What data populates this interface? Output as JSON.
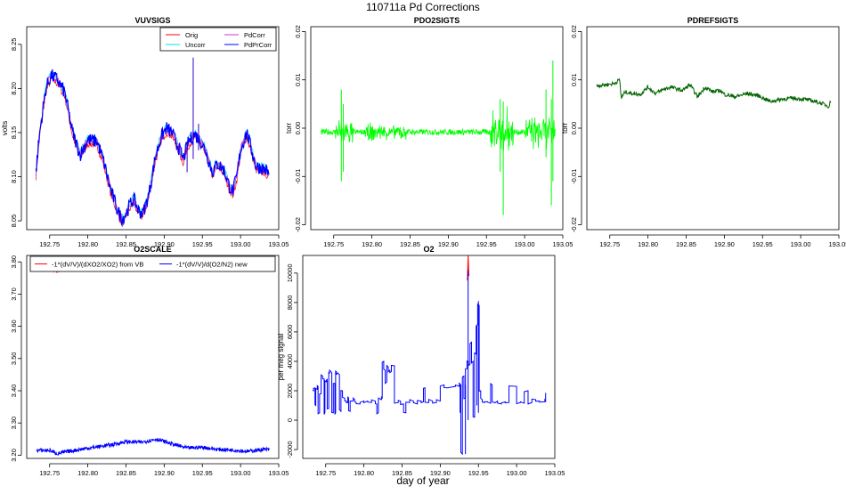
{
  "figure": {
    "title": "110711a   Pd Corrections",
    "xlabel": "day of year"
  },
  "colors": {
    "orig": "#ff0000",
    "uncorr": "#00e5ee",
    "pdcorr": "#cc33cc",
    "pdprcorr": "#0000ff",
    "pdo2": "#00ff00",
    "pdref": "#006400",
    "o2scale_vb": "#ff0000",
    "o2scale_new": "#0000ff"
  },
  "chart_data": [
    {
      "id": "vuvsigs",
      "type": "line",
      "title": "VUVSIGS",
      "ylabel": "volts",
      "xlim": [
        192.72,
        193.05
      ],
      "ylim": [
        8.04,
        8.27
      ],
      "xticks": [
        192.75,
        192.8,
        192.85,
        192.9,
        192.95,
        193.0,
        193.05
      ],
      "yticks": [
        8.05,
        8.1,
        8.15,
        8.2,
        8.25
      ],
      "legend": {
        "placement": "top-right",
        "entries": [
          "Orig",
          "Uncorr",
          "PdCorr",
          "PdPrCorr"
        ]
      },
      "series": [
        {
          "name": "Orig",
          "color": "#ff0000",
          "offset": -0.004
        },
        {
          "name": "Uncorr",
          "color": "#00e5ee",
          "offset": 0.002
        },
        {
          "name": "PdCorr",
          "color": "#cc33cc",
          "offset": 0.0
        },
        {
          "name": "PdPrCorr",
          "color": "#0000ff",
          "offset": 0.0
        }
      ],
      "band": 0.008,
      "x": [
        192.732,
        192.737,
        192.745,
        192.752,
        192.76,
        192.77,
        192.78,
        192.79,
        192.8,
        192.812,
        192.82,
        192.83,
        192.84,
        192.845,
        192.85,
        192.855,
        192.86,
        192.866,
        192.872,
        192.88,
        192.888,
        192.896,
        192.903,
        192.91,
        192.918,
        192.925,
        192.932,
        192.94,
        192.948,
        192.955,
        192.963,
        192.97,
        192.978,
        192.985,
        192.99,
        192.995,
        193.0,
        193.008,
        193.014,
        193.02,
        193.027,
        193.033,
        193.038
      ],
      "y": [
        8.105,
        8.15,
        8.2,
        8.215,
        8.21,
        8.195,
        8.15,
        8.125,
        8.142,
        8.14,
        8.12,
        8.085,
        8.06,
        8.052,
        8.058,
        8.068,
        8.075,
        8.062,
        8.058,
        8.08,
        8.12,
        8.145,
        8.155,
        8.15,
        8.135,
        8.12,
        8.14,
        8.148,
        8.14,
        8.128,
        8.105,
        8.115,
        8.108,
        8.09,
        8.083,
        8.1,
        8.13,
        8.15,
        8.132,
        8.112,
        8.11,
        8.108,
        8.102
      ],
      "spikes": [
        {
          "x": 192.938,
          "ymin": 8.12,
          "ymax": 8.235
        },
        {
          "x": 192.93,
          "ymin": 8.105,
          "ymax": 8.14
        },
        {
          "x": 192.945,
          "ymin": 8.13,
          "ymax": 8.16
        }
      ]
    },
    {
      "id": "pdo2sigts",
      "type": "line",
      "title": "PDO2SIGTS",
      "ylabel": "torr",
      "xlim": [
        192.72,
        193.05
      ],
      "ylim": [
        -0.021,
        0.021
      ],
      "xticks": [
        192.75,
        192.8,
        192.85,
        192.9,
        192.95,
        193.0,
        193.05
      ],
      "yticks": [
        -0.02,
        -0.01,
        0.0,
        0.01,
        0.02
      ],
      "series": [
        {
          "name": "",
          "color": "#00ff00"
        }
      ],
      "baseline": -0.0008,
      "noise": 0.0006,
      "bursts": [
        {
          "x0": 192.752,
          "x1": 192.775,
          "amp": 0.0025
        },
        {
          "x0": 192.79,
          "x1": 192.845,
          "amp": 0.0016
        },
        {
          "x0": 192.955,
          "x1": 192.985,
          "amp": 0.0045
        },
        {
          "x0": 193.0,
          "x1": 193.04,
          "amp": 0.003
        }
      ],
      "spikes": [
        {
          "x": 192.76,
          "ymin": -0.011,
          "ymax": 0.008
        },
        {
          "x": 192.7625,
          "ymin": -0.009,
          "ymax": 0.005
        },
        {
          "x": 192.972,
          "ymin": -0.018,
          "ymax": 0.0055
        },
        {
          "x": 192.968,
          "ymin": -0.009,
          "ymax": 0.006
        },
        {
          "x": 193.035,
          "ymin": -0.016,
          "ymax": 0.006
        },
        {
          "x": 193.037,
          "ymin": -0.011,
          "ymax": 0.014
        },
        {
          "x": 193.028,
          "ymin": -0.006,
          "ymax": 0.008
        }
      ]
    },
    {
      "id": "pdrefsigts",
      "type": "line",
      "title": "PDREFSIGTS",
      "ylabel": "torr",
      "xlim": [
        192.72,
        193.05
      ],
      "ylim": [
        -0.021,
        0.021
      ],
      "xticks": [
        192.75,
        192.8,
        192.85,
        192.9,
        192.95,
        193.0,
        193.05
      ],
      "yticks": [
        -0.02,
        -0.01,
        0.0,
        0.01,
        0.02
      ],
      "series": [
        {
          "name": "",
          "color": "#006400"
        }
      ],
      "noise": 0.0004,
      "x": [
        192.733,
        192.745,
        192.755,
        192.763,
        192.765,
        192.77,
        192.78,
        192.79,
        192.8,
        192.81,
        192.82,
        192.83,
        192.845,
        192.855,
        192.865,
        192.875,
        192.885,
        192.895,
        192.9,
        192.915,
        192.93,
        192.945,
        192.96,
        192.975,
        192.99,
        193.005,
        193.02,
        193.03,
        193.037,
        193.04
      ],
      "y": [
        0.0088,
        0.009,
        0.0092,
        0.01,
        0.0062,
        0.0075,
        0.0072,
        0.007,
        0.0085,
        0.0072,
        0.008,
        0.0085,
        0.0078,
        0.009,
        0.0065,
        0.0085,
        0.0075,
        0.0078,
        0.007,
        0.0065,
        0.0072,
        0.0067,
        0.0055,
        0.006,
        0.0062,
        0.006,
        0.0055,
        0.005,
        0.0045,
        0.006
      ]
    },
    {
      "id": "o2scale",
      "type": "line",
      "title": "O2SCALE",
      "ylabel": "",
      "xlim": [
        192.72,
        193.05
      ],
      "ylim": [
        3.19,
        3.82
      ],
      "xticks": [
        192.75,
        192.8,
        192.85,
        192.9,
        192.95,
        193.0,
        193.05
      ],
      "yticks": [
        3.2,
        3.3,
        3.4,
        3.5,
        3.6,
        3.7,
        3.8
      ],
      "legend": {
        "placement": "top",
        "entries": [
          "-1*(dV/V)/(dXO2/XO2) from VB",
          "-1*(dV/V)/d(O2/N2) new"
        ]
      },
      "noise": 0.006,
      "series": [
        {
          "name": "-1*(dV/V)/(dXO2/XO2) from VB",
          "color": "#ff0000",
          "x": [
            192.733,
            192.75,
            192.76,
            192.775,
            192.79,
            192.81,
            192.83,
            192.85,
            192.87,
            192.89,
            192.91,
            192.93,
            192.95,
            192.97,
            192.99,
            193.01,
            193.03,
            193.038
          ],
          "y": [
            3.785,
            3.785,
            3.77,
            3.785,
            3.792,
            3.798,
            3.8,
            3.8,
            3.805,
            3.798,
            3.79,
            3.78,
            3.79,
            3.8,
            3.785,
            3.778,
            3.785,
            3.783
          ]
        },
        {
          "name": "-1*(dV/V)/d(O2/N2) new",
          "color": "#0000ff",
          "x": [
            192.733,
            192.75,
            192.76,
            192.775,
            192.79,
            192.81,
            192.83,
            192.85,
            192.87,
            192.89,
            192.91,
            192.93,
            192.95,
            192.97,
            192.99,
            193.01,
            193.03,
            193.038
          ],
          "y": [
            3.215,
            3.215,
            3.205,
            3.212,
            3.218,
            3.225,
            3.232,
            3.242,
            3.24,
            3.25,
            3.235,
            3.222,
            3.225,
            3.218,
            3.216,
            3.212,
            3.218,
            3.217
          ]
        }
      ]
    },
    {
      "id": "o2",
      "type": "line",
      "title": "O2",
      "ylabel": "per meg signal",
      "xlim": [
        192.72,
        193.05
      ],
      "ylim": [
        -2600,
        11200
      ],
      "xticks": [
        192.75,
        192.8,
        192.85,
        192.9,
        192.95,
        193.0,
        193.05
      ],
      "yticks": [
        -2000,
        0,
        2000,
        4000,
        6000,
        8000,
        10000
      ],
      "noise": 120,
      "series": [
        {
          "name": "",
          "color": "#ff0000",
          "x": [
            192.9355,
            192.9365,
            192.9375
          ],
          "y": [
            9500,
            11200,
            9800
          ]
        },
        {
          "name": "",
          "color": "#0000ff",
          "x": [
            192.733,
            192.734,
            192.736,
            192.737,
            192.739,
            192.74,
            192.742,
            192.744,
            192.746,
            192.748,
            192.749,
            192.751,
            192.752,
            192.754,
            192.755,
            192.757,
            192.758,
            192.76,
            192.762,
            192.763,
            192.764,
            192.766,
            192.768,
            192.77,
            192.772,
            192.775,
            192.777,
            192.779,
            192.78,
            192.782,
            192.784,
            192.786,
            192.788,
            192.79,
            192.795,
            192.8,
            192.805,
            192.81,
            192.815,
            192.817,
            192.819,
            192.823,
            192.824,
            192.826,
            192.828,
            192.83,
            192.832,
            192.834,
            192.836,
            192.84,
            192.845,
            192.848,
            192.852,
            192.855,
            192.86,
            192.865,
            192.87,
            192.875,
            192.878,
            192.88,
            192.885,
            192.89,
            192.895,
            192.9,
            192.905,
            192.91,
            192.92,
            192.925,
            192.927,
            192.929,
            192.931,
            192.933,
            192.935,
            192.937,
            192.939,
            192.941,
            192.943,
            192.945,
            192.947,
            192.949,
            192.951,
            192.953,
            192.955,
            192.958,
            192.962,
            192.966,
            192.968,
            192.972,
            192.975,
            192.98,
            192.985,
            192.99,
            193.0,
            193.005,
            193.01,
            193.015,
            193.02,
            193.025,
            193.03,
            193.037,
            193.038
          ],
          "y": [
            2000,
            2200,
            1000,
            2100,
            2300,
            500,
            1800,
            3000,
            2800,
            500,
            2600,
            2800,
            800,
            3200,
            3300,
            3200,
            500,
            2500,
            500,
            3300,
            3200,
            3100,
            600,
            2000,
            1500,
            1300,
            1200,
            1500,
            600,
            1300,
            1300,
            1400,
            1200,
            1100,
            1300,
            1300,
            1200,
            1300,
            1100,
            500,
            1400,
            1500,
            4000,
            3400,
            2600,
            3600,
            3400,
            3300,
            3700,
            1200,
            1300,
            1100,
            500,
            1200,
            1300,
            1100,
            1300,
            1250,
            2200,
            1200,
            1300,
            1200,
            1300,
            2400,
            2200,
            2300,
            2300,
            2400,
            -2300,
            3000,
            1500,
            3500,
            4000,
            3800,
            5300,
            4000,
            200,
            4500,
            6500,
            7800,
            2000,
            1400,
            1200,
            1250,
            1150,
            2400,
            1200,
            1300,
            1100,
            1250,
            1200,
            2300,
            1200,
            1150,
            2000,
            1200,
            1400,
            1300,
            1250,
            1300,
            1800
          ]
        }
      ],
      "spikes": [
        {
          "x": 192.933,
          "ymin": -2300,
          "ymax": 2400
        },
        {
          "x": 192.9365,
          "ymin": 0,
          "ymax": 10200
        },
        {
          "x": 192.95,
          "ymin": 500,
          "ymax": 8100
        },
        {
          "x": 192.948,
          "ymin": 1000,
          "ymax": 6500
        },
        {
          "x": 192.926,
          "ymin": 500,
          "ymax": 2400
        }
      ]
    }
  ]
}
